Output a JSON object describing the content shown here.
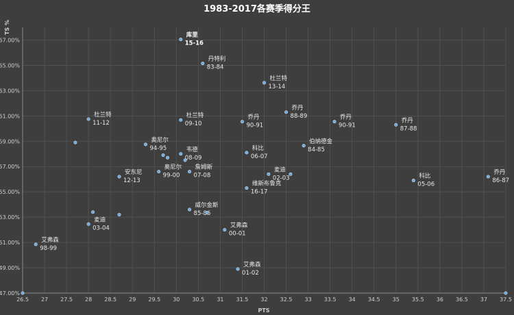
{
  "chart_data": {
    "type": "scatter",
    "title": "1983-2017各赛季得分王",
    "xlabel": "PTS",
    "ylabel": "TS %",
    "xlim": [
      26.5,
      37.5
    ],
    "ylim": [
      0.47,
      0.68
    ],
    "x_ticks": [
      "26.5",
      "27",
      "27.5",
      "28",
      "28.5",
      "29",
      "29.5",
      "30",
      "30.5",
      "31",
      "31.5",
      "32",
      "32.5",
      "33",
      "33.5",
      "34",
      "34.5",
      "35",
      "35.5",
      "36",
      "36.5",
      "37",
      "37.5"
    ],
    "y_ticks": [
      "47.00%",
      "49.00%",
      "51.00%",
      "53.00%",
      "55.00%",
      "57.00%",
      "59.00%",
      "61.00%",
      "63.00%",
      "65.00%",
      "67.00%"
    ],
    "grid": true,
    "points": [
      {
        "x": 30.1,
        "y": 0.6705,
        "name": "库里",
        "season": "15-16",
        "highlight": true
      },
      {
        "x": 30.6,
        "y": 0.6515,
        "name": "丹特利",
        "season": "83-84"
      },
      {
        "x": 32.0,
        "y": 0.6362,
        "name": "杜兰特",
        "season": "13-14"
      },
      {
        "x": 28.0,
        "y": 0.6075,
        "name": "杜兰特",
        "season": "11-12"
      },
      {
        "x": 30.1,
        "y": 0.6068,
        "name": "杜兰特",
        "season": "09-10"
      },
      {
        "x": 31.5,
        "y": 0.6055,
        "name": "乔丹",
        "season": "90-91"
      },
      {
        "x": 32.5,
        "y": 0.613,
        "name": "乔丹",
        "season": "88-89"
      },
      {
        "x": 33.6,
        "y": 0.6055,
        "name": "乔丹",
        "season": "90-91"
      },
      {
        "x": 35.0,
        "y": 0.603,
        "name": "乔丹",
        "season": "87-88"
      },
      {
        "x": 27.7,
        "y": 0.589
      },
      {
        "x": 29.3,
        "y": 0.5875,
        "name": "奥尼尔",
        "season": "94-95"
      },
      {
        "x": 29.7,
        "y": 0.579
      },
      {
        "x": 29.8,
        "y": 0.577
      },
      {
        "x": 30.1,
        "y": 0.58,
        "name": "韦德",
        "season": "08-09"
      },
      {
        "x": 30.2,
        "y": 0.575
      },
      {
        "x": 29.6,
        "y": 0.566,
        "name": "奥尼尔",
        "season": "99-00"
      },
      {
        "x": 30.3,
        "y": 0.566,
        "name": "詹姆斯",
        "season": "07-08"
      },
      {
        "x": 31.6,
        "y": 0.581,
        "name": "科比",
        "season": "06-07"
      },
      {
        "x": 32.9,
        "y": 0.5865,
        "name": "伯纳德金",
        "season": "84-85"
      },
      {
        "x": 28.7,
        "y": 0.562,
        "name": "安东尼",
        "season": "12-13"
      },
      {
        "x": 32.1,
        "y": 0.564,
        "name": "麦迪",
        "season": "02-03"
      },
      {
        "x": 32.6,
        "y": 0.564
      },
      {
        "x": 31.6,
        "y": 0.553,
        "name": "维斯布鲁克",
        "season": "16-17"
      },
      {
        "x": 35.4,
        "y": 0.559,
        "name": "科比",
        "season": "05-06"
      },
      {
        "x": 37.1,
        "y": 0.562,
        "name": "乔丹",
        "season": "86-87"
      },
      {
        "x": 30.3,
        "y": 0.536,
        "name": "威尔金斯",
        "season": "85-86"
      },
      {
        "x": 30.7,
        "y": 0.5335
      },
      {
        "x": 28.1,
        "y": 0.534
      },
      {
        "x": 28.7,
        "y": 0.532
      },
      {
        "x": 28.0,
        "y": 0.5245,
        "name": "麦迪",
        "season": "03-04"
      },
      {
        "x": 26.8,
        "y": 0.5085,
        "name": "艾弗森",
        "season": "98-99"
      },
      {
        "x": 31.1,
        "y": 0.52,
        "name": "艾弗森",
        "season": "00-01"
      },
      {
        "x": 31.4,
        "y": 0.489,
        "name": "艾弗森",
        "season": "01-02"
      },
      {
        "x": 26.5,
        "y": 0.47
      },
      {
        "x": 37.5,
        "y": 0.47
      }
    ]
  }
}
